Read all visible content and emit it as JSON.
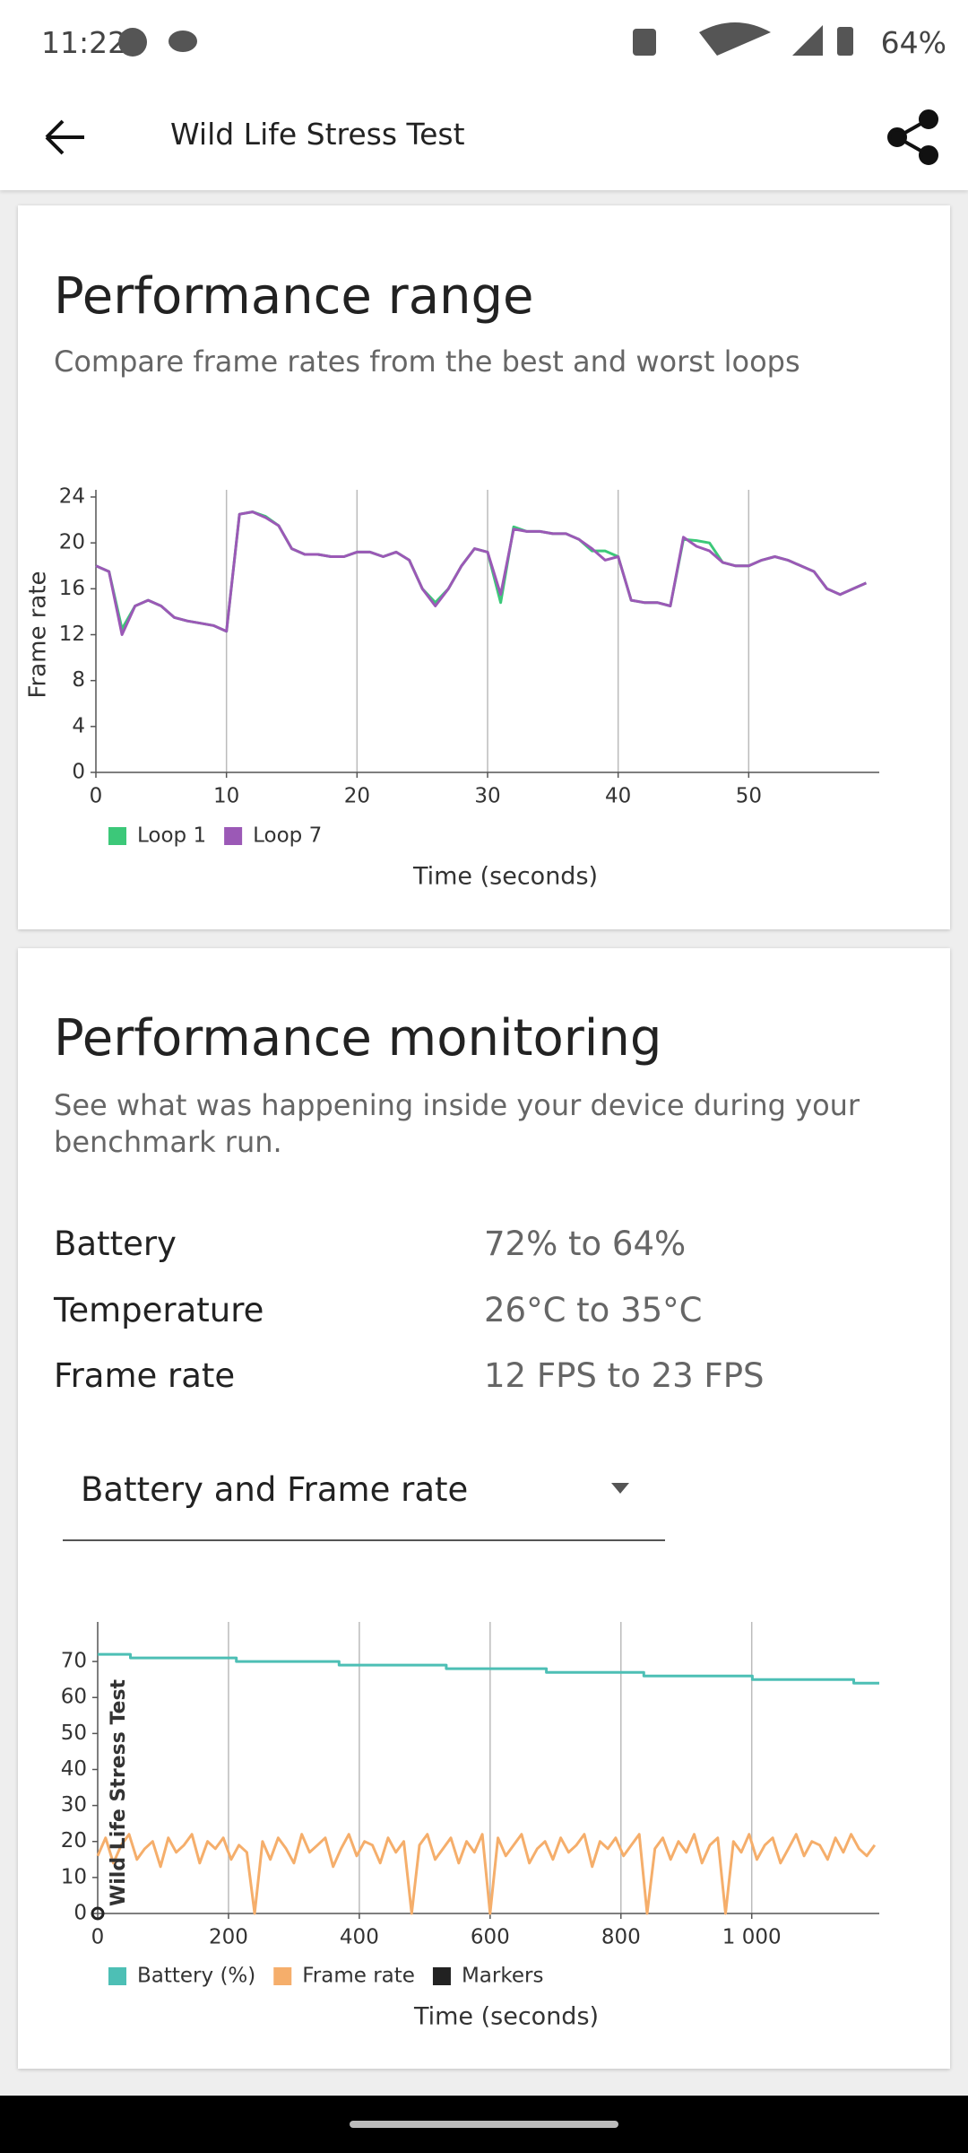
{
  "status_bar": {
    "time": "11:22",
    "battery": "64%"
  },
  "header": {
    "title": "Wild Life Stress Test"
  },
  "range_card": {
    "title": "Performance range",
    "subtitle": "Compare frame rates from the best and worst loops"
  },
  "monitoring_card": {
    "title": "Performance monitoring",
    "subtitle": "See what was happening inside your device during your benchmark run.",
    "stats": [
      {
        "label": "Battery",
        "value": "72% to 64%"
      },
      {
        "label": "Temperature",
        "value": "26°C to 35°C"
      },
      {
        "label": "Frame rate",
        "value": "12 FPS to 23 FPS"
      }
    ],
    "dropdown": "Battery and Frame rate"
  },
  "chart_data": [
    {
      "type": "line",
      "ylabel": "Frame rate",
      "xlabel": "Time (seconds)",
      "xlim": [
        0,
        60
      ],
      "xticks": [
        0,
        10,
        20,
        30,
        40,
        50
      ],
      "ylim": [
        0,
        24
      ],
      "yticks": [
        0,
        4,
        8,
        12,
        16,
        20,
        24
      ],
      "grid": "x",
      "x": [
        0,
        1,
        2,
        3,
        4,
        5,
        6,
        7,
        8,
        9,
        10,
        11,
        12,
        13,
        14,
        15,
        16,
        17,
        18,
        19,
        20,
        21,
        22,
        23,
        24,
        25,
        26,
        27,
        28,
        29,
        30,
        31,
        32,
        33,
        34,
        35,
        36,
        37,
        38,
        39,
        40,
        41,
        42,
        43,
        44,
        45,
        46,
        47,
        48,
        49,
        50,
        51,
        52,
        53,
        54,
        55,
        56,
        57,
        58,
        59
      ],
      "series": [
        {
          "name": "Loop 1",
          "color": "#3cc879",
          "values": [
            18,
            17.5,
            12.5,
            14.5,
            15,
            14.5,
            13.5,
            13.2,
            13,
            12.8,
            12.3,
            22.5,
            22.7,
            22.3,
            21.5,
            19.5,
            19,
            19,
            18.8,
            18.8,
            19.2,
            19.2,
            18.8,
            19.2,
            18.5,
            16,
            14.8,
            16,
            18,
            19.5,
            19.2,
            14.8,
            21.4,
            21,
            21,
            20.8,
            20.8,
            20.3,
            19.3,
            19.3,
            18.8,
            15,
            14.8,
            14.8,
            14.5,
            20.3,
            20.2,
            20,
            18.3,
            18,
            18,
            18.5,
            18.8,
            18.5,
            18,
            17.5,
            16,
            15.5,
            16,
            16.5
          ]
        },
        {
          "name": "Loop 7",
          "color": "#9b59b6",
          "values": [
            18,
            17.5,
            12,
            14.5,
            15,
            14.5,
            13.5,
            13.2,
            13,
            12.8,
            12.3,
            22.5,
            22.7,
            22.2,
            21.5,
            19.5,
            19,
            19,
            18.8,
            18.8,
            19.2,
            19.2,
            18.8,
            19.2,
            18.5,
            16,
            14.5,
            16,
            18,
            19.5,
            19.2,
            15.5,
            21.2,
            21,
            21,
            20.8,
            20.8,
            20.3,
            19.5,
            18.5,
            18.8,
            15,
            14.8,
            14.8,
            14.5,
            20.5,
            19.7,
            19.3,
            18.3,
            18,
            18,
            18.5,
            18.8,
            18.5,
            18,
            17.5,
            16,
            15.5,
            16,
            16.5
          ]
        }
      ]
    },
    {
      "type": "line",
      "xlabel": "Time (seconds)",
      "xlim": [
        0,
        1195
      ],
      "xticks": [
        0,
        200,
        400,
        600,
        800,
        {
          "value": 1000,
          "label": "1 000"
        }
      ],
      "ylim": [
        0,
        79
      ],
      "yticks": [
        0,
        10,
        20,
        30,
        40,
        50,
        60,
        70
      ],
      "grid": "x",
      "series": [
        {
          "name": "Battery (%)",
          "color": "#4dbfb5",
          "x": [
            0,
            50,
            50,
            212,
            212,
            369,
            369,
            533,
            533,
            686,
            686,
            835,
            835,
            1001,
            1001,
            1156,
            1156,
            1195
          ],
          "values": [
            72,
            72,
            71,
            71,
            70,
            70,
            69,
            69,
            68,
            68,
            67,
            67,
            66,
            66,
            65,
            65,
            64,
            64
          ]
        },
        {
          "name": "Frame rate",
          "color": "#f5ae6b",
          "x": [
            0,
            12,
            24,
            36,
            48,
            60,
            72,
            84,
            96,
            108,
            120,
            132,
            144,
            156,
            168,
            180,
            192,
            204,
            216,
            228,
            240,
            252,
            264,
            276,
            288,
            300,
            312,
            324,
            336,
            348,
            360,
            372,
            384,
            396,
            408,
            420,
            432,
            444,
            456,
            468,
            480,
            492,
            504,
            516,
            528,
            540,
            552,
            564,
            576,
            588,
            600,
            612,
            624,
            636,
            648,
            660,
            672,
            684,
            696,
            708,
            720,
            732,
            744,
            756,
            768,
            780,
            792,
            804,
            816,
            828,
            840,
            852,
            864,
            876,
            888,
            900,
            912,
            924,
            936,
            948,
            960,
            972,
            984,
            996,
            1008,
            1020,
            1032,
            1044,
            1056,
            1068,
            1080,
            1092,
            1104,
            1116,
            1128,
            1140,
            1152,
            1164,
            1176,
            1188
          ],
          "values": [
            16,
            21,
            14,
            19,
            22,
            15,
            18,
            20,
            13,
            21,
            17,
            19,
            22,
            14,
            20,
            18,
            21,
            15,
            19,
            17,
            0,
            20,
            15,
            21,
            18,
            14,
            22,
            17,
            19,
            21,
            13,
            18,
            22,
            16,
            20,
            19,
            14,
            21,
            17,
            20,
            0,
            19,
            22,
            15,
            18,
            21,
            14,
            20,
            17,
            22,
            0,
            21,
            16,
            19,
            22,
            14,
            18,
            20,
            15,
            21,
            17,
            19,
            22,
            13,
            20,
            18,
            21,
            16,
            19,
            22,
            0,
            18,
            21,
            15,
            20,
            17,
            22,
            14,
            19,
            21,
            0,
            20,
            17,
            22,
            15,
            19,
            21,
            14,
            18,
            22,
            16,
            20,
            19,
            15,
            21,
            17,
            22,
            18,
            16,
            19
          ]
        },
        {
          "name": "Markers",
          "color": "#222222",
          "marker": true,
          "x": [
            0
          ],
          "values": [
            0
          ],
          "labels": [
            "Wild Life Stress Test"
          ]
        }
      ]
    }
  ]
}
